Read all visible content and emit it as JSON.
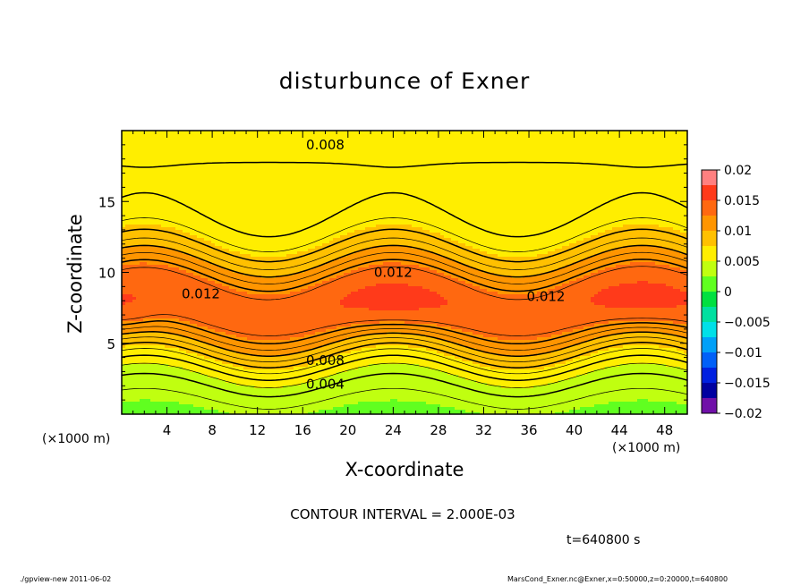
{
  "chart_data": {
    "type": "contour",
    "title": "disturbunce of Exner",
    "xlabel": "X-coordinate",
    "ylabel": "Z-coordinate",
    "x_unit": "(×1000 m)",
    "y_unit": "(×1000 m)",
    "xlim": [
      0,
      50
    ],
    "ylim": [
      0,
      20
    ],
    "x_ticks": [
      4,
      8,
      12,
      16,
      20,
      24,
      28,
      32,
      36,
      40,
      44,
      48
    ],
    "y_ticks": [
      5,
      10,
      15
    ],
    "contour_interval_text": "CONTOUR INTERVAL = 2.000E-03",
    "contour_labels": [
      {
        "value": "0.008",
        "x": 18,
        "z": 19.0
      },
      {
        "value": "0.012",
        "x": 7,
        "z": 8.5
      },
      {
        "value": "0.012",
        "x": 24,
        "z": 10.0
      },
      {
        "value": "0.012",
        "x": 37.5,
        "z": 8.3
      },
      {
        "value": "0.008",
        "x": 18,
        "z": 3.8
      },
      {
        "value": "0.004",
        "x": 18,
        "z": 2.1
      }
    ],
    "colorbar": {
      "range": [
        -0.02,
        0.02
      ],
      "tick_labels": [
        "0.02",
        "0.015",
        "0.01",
        "0.005",
        "0",
        "−0.005",
        "−0.01",
        "−0.015",
        "−0.02"
      ],
      "tick_values": [
        0.02,
        0.015,
        0.01,
        0.005,
        0,
        -0.005,
        -0.01,
        -0.015,
        -0.02
      ],
      "colors": [
        "#ff8080",
        "#ff3a1a",
        "#ff6810",
        "#ff9500",
        "#ffc000",
        "#ffee00",
        "#c0ff10",
        "#60ff20",
        "#00e040",
        "#00e0a0",
        "#00e0e8",
        "#00a0f8",
        "#0060f8",
        "#0020e0",
        "#0000a0",
        "#7010a8"
      ]
    },
    "time_text": "t=640800 s"
  },
  "footer": {
    "left": "./gpview-new   2011-06-02",
    "right": "MarsCond_Exner.nc@Exner,x=0:50000,z=0:20000,t=640800"
  }
}
